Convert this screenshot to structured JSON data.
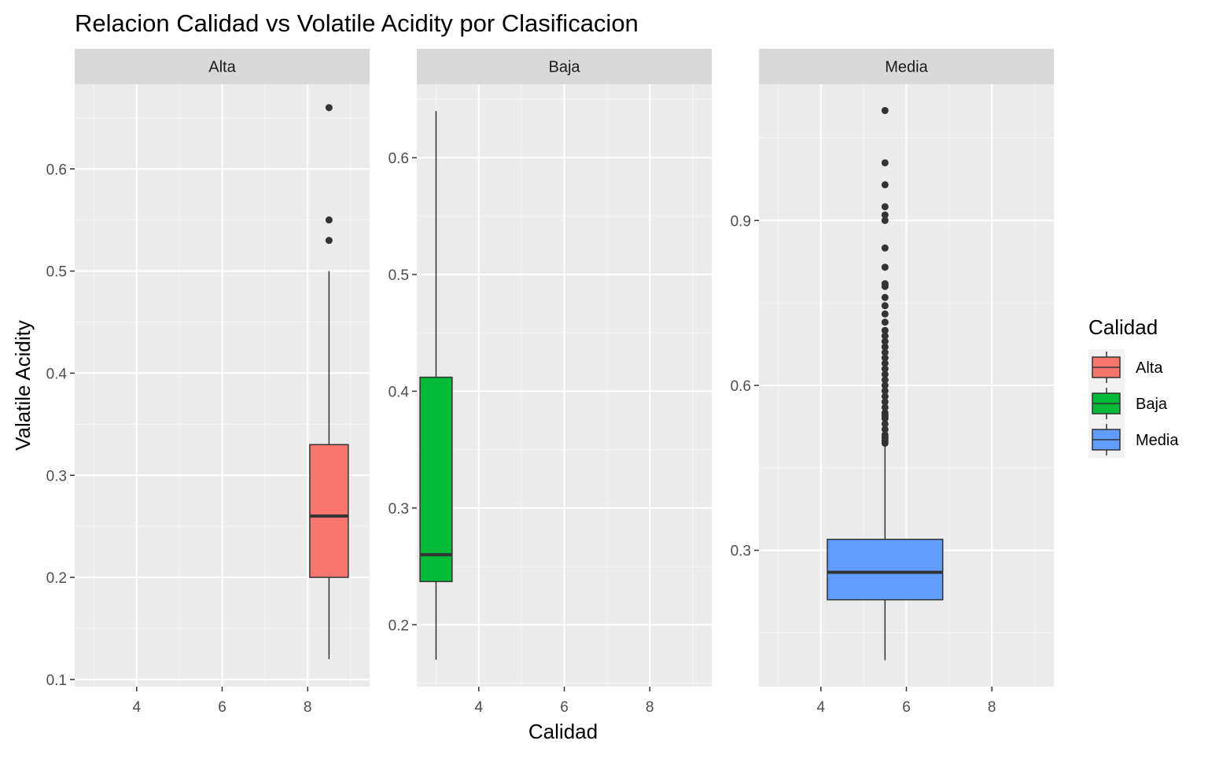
{
  "chart_data": {
    "type": "boxplot",
    "title": "Relacion Calidad vs Volatile Acidity por Clasificacion",
    "xlabel": "Calidad",
    "ylabel": "Valatile Acidity",
    "facet_scales": "free_y",
    "grid": true,
    "legend": {
      "title": "Calidad",
      "placement": "right",
      "entries": [
        {
          "label": "Alta",
          "color": "#F8766D"
        },
        {
          "label": "Baja",
          "color": "#00BA38"
        },
        {
          "label": "Media",
          "color": "#619CFF"
        }
      ]
    },
    "x_ticks": [
      4,
      6,
      8
    ],
    "xlim": [
      2.55,
      9.45
    ],
    "panels": [
      {
        "strip": "Alta",
        "ylim": [
          0.093,
          0.683
        ],
        "y_ticks": [
          0.1,
          0.2,
          0.3,
          0.4,
          0.5,
          0.6
        ],
        "y_tick_labels": [
          "0.1",
          "0.2",
          "0.3",
          "0.4",
          "0.5",
          "0.6"
        ],
        "box": {
          "x": 8.5,
          "width": 0.9,
          "fill": "#F8766D",
          "whisker_low": 0.12,
          "q1": 0.2,
          "median": 0.26,
          "q3": 0.33,
          "whisker_high": 0.5
        },
        "outliers": [
          0.53,
          0.55,
          0.66
        ]
      },
      {
        "strip": "Baja",
        "ylim": [
          0.147,
          0.663
        ],
        "y_ticks": [
          0.2,
          0.3,
          0.4,
          0.5,
          0.6
        ],
        "y_tick_labels": [
          "0.2",
          "0.3",
          "0.4",
          "0.5",
          "0.6"
        ],
        "box": {
          "x": 3.0,
          "width": 0.75,
          "fill": "#00BA38",
          "whisker_low": 0.17,
          "q1": 0.237,
          "median": 0.26,
          "q3": 0.412,
          "whisker_high": 0.64
        },
        "outliers": []
      },
      {
        "strip": "Media",
        "ylim": [
          0.052,
          1.148
        ],
        "y_ticks": [
          0.3,
          0.6,
          0.9
        ],
        "y_tick_labels": [
          "0.3",
          "0.6",
          "0.9"
        ],
        "box": {
          "x": 5.5,
          "width": 2.7,
          "fill": "#619CFF",
          "whisker_low": 0.1,
          "q1": 0.21,
          "median": 0.26,
          "q3": 0.32,
          "whisker_high": 0.49
        },
        "outliers": [
          0.495,
          0.5,
          0.505,
          0.51,
          0.52,
          0.53,
          0.54,
          0.545,
          0.55,
          0.56,
          0.57,
          0.58,
          0.59,
          0.6,
          0.61,
          0.62,
          0.63,
          0.64,
          0.65,
          0.66,
          0.67,
          0.68,
          0.69,
          0.7,
          0.715,
          0.73,
          0.745,
          0.76,
          0.78,
          0.785,
          0.815,
          0.85,
          0.9,
          0.91,
          0.925,
          0.965,
          1.005,
          1.1
        ]
      }
    ]
  }
}
